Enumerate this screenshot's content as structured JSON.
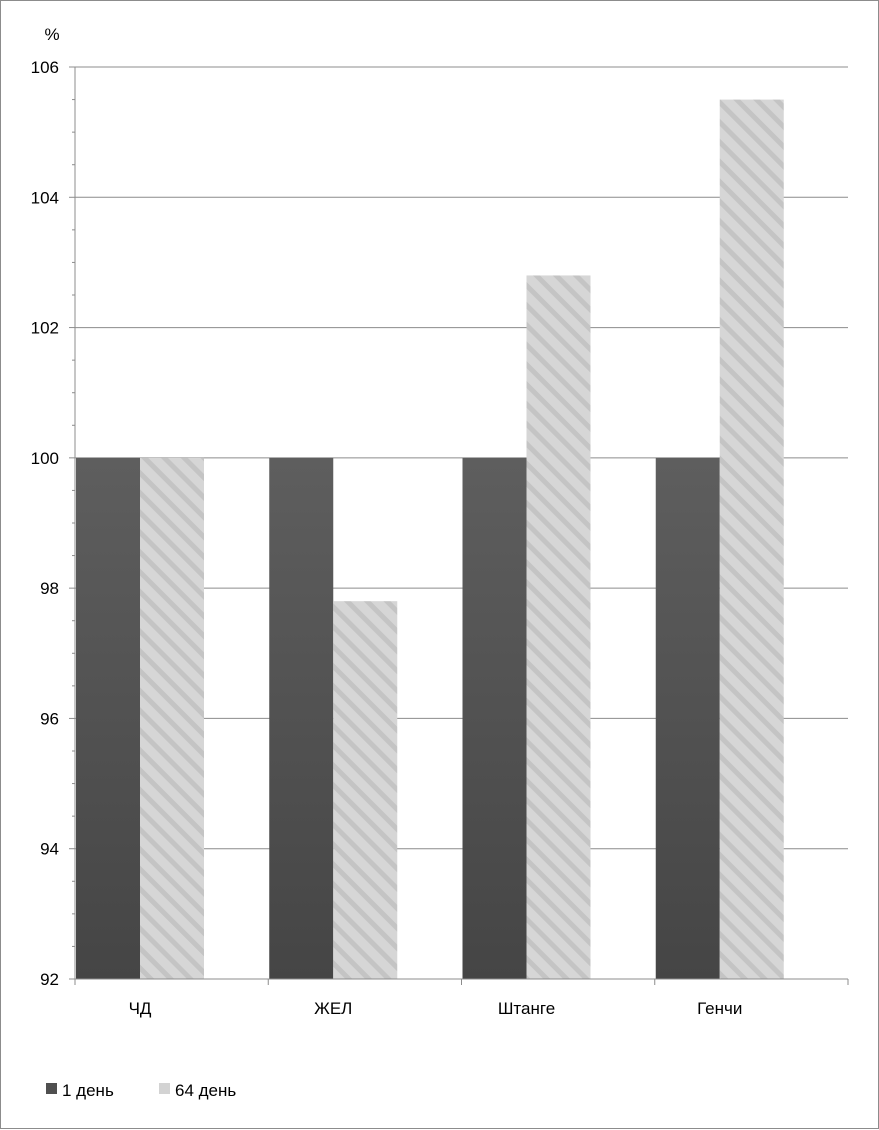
{
  "chart_data": {
    "type": "bar",
    "ylabel": "%",
    "ylim": [
      92,
      106
    ],
    "y_ticks": [
      92,
      94,
      96,
      98,
      100,
      102,
      104,
      106
    ],
    "categories": [
      "ЧД",
      "ЖЕЛ",
      "Штанге",
      "Генчи"
    ],
    "series": [
      {
        "name": "1 день",
        "values": [
          100,
          100,
          100,
          100
        ]
      },
      {
        "name": "64 день",
        "values": [
          100,
          97.8,
          102.8,
          105.5
        ]
      }
    ],
    "grid": true,
    "legend_position": "bottom-left",
    "colors": {
      "series_1": "#4f4f4f",
      "series_2": "#d3d3d3",
      "series_2_stripe": "#bdbdbd",
      "grid": "#8c8c8c",
      "axis": "#8c8c8c"
    }
  }
}
